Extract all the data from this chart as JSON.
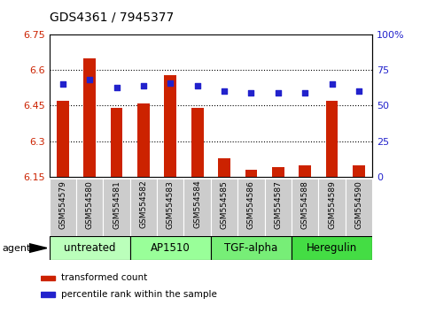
{
  "title": "GDS4361 / 7945377",
  "samples": [
    "GSM554579",
    "GSM554580",
    "GSM554581",
    "GSM554582",
    "GSM554583",
    "GSM554584",
    "GSM554585",
    "GSM554586",
    "GSM554587",
    "GSM554588",
    "GSM554589",
    "GSM554590"
  ],
  "red_values": [
    6.47,
    6.65,
    6.44,
    6.46,
    6.58,
    6.44,
    6.23,
    6.18,
    6.19,
    6.2,
    6.47,
    6.2
  ],
  "blue_values": [
    65,
    68,
    63,
    64,
    66,
    64,
    60,
    59,
    59,
    59,
    65,
    60
  ],
  "ymin": 6.15,
  "ymax": 6.75,
  "yticks": [
    6.15,
    6.3,
    6.45,
    6.6,
    6.75
  ],
  "ytick_labels": [
    "6.15",
    "6.3",
    "6.45",
    "6.6",
    "6.75"
  ],
  "right_yticks": [
    0,
    25,
    50,
    75,
    100
  ],
  "right_ytick_labels": [
    "0",
    "25",
    "50",
    "75",
    "100%"
  ],
  "grid_lines": [
    6.3,
    6.45,
    6.6
  ],
  "bar_color": "#CC2200",
  "dot_color": "#2222CC",
  "agents": [
    {
      "label": "untreated",
      "start": 0,
      "end": 3,
      "color": "#BBFFBB"
    },
    {
      "label": "AP1510",
      "start": 3,
      "end": 6,
      "color": "#99FF99"
    },
    {
      "label": "TGF-alpha",
      "start": 6,
      "end": 9,
      "color": "#77EE77"
    },
    {
      "label": "Heregulin",
      "start": 9,
      "end": 12,
      "color": "#44DD44"
    }
  ],
  "agent_label": "agent",
  "legend_red": "transformed count",
  "legend_blue": "percentile rank within the sample",
  "bg_color": "#FFFFFF",
  "tick_color_left": "#CC2200",
  "tick_color_right": "#2222CC",
  "sample_box_color": "#CCCCCC",
  "bar_width": 0.45
}
